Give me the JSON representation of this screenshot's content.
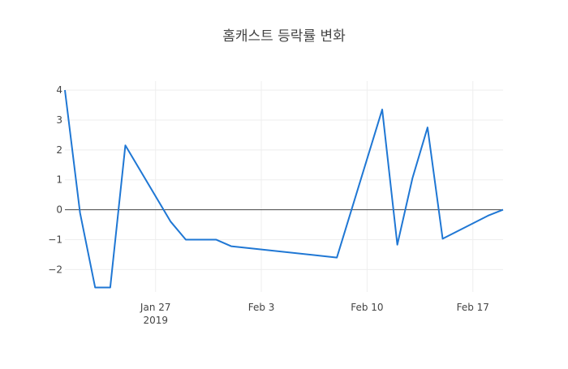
{
  "chart_data": {
    "type": "line",
    "title": "홈캐스트 등락률 변화",
    "xlabel": "",
    "ylabel": "",
    "x_ticks": [
      {
        "date": "2019-01-27",
        "label": "Jan 27",
        "sublabel": "2019"
      },
      {
        "date": "2019-02-03",
        "label": "Feb 3",
        "sublabel": ""
      },
      {
        "date": "2019-02-10",
        "label": "Feb 10",
        "sublabel": ""
      },
      {
        "date": "2019-02-17",
        "label": "Feb 17",
        "sublabel": ""
      }
    ],
    "y_ticks": [
      {
        "value": 4,
        "label": "4"
      },
      {
        "value": 3,
        "label": "3"
      },
      {
        "value": 2,
        "label": "2"
      },
      {
        "value": 1,
        "label": "1"
      },
      {
        "value": 0,
        "label": "0"
      },
      {
        "value": -1,
        "label": "−1"
      },
      {
        "value": -2,
        "label": "−2"
      }
    ],
    "xlim": [
      "2019-01-21",
      "2019-02-19"
    ],
    "ylim": [
      -2.75,
      4.3
    ],
    "grid": true,
    "series": [
      {
        "color": "#1f77d4",
        "points": [
          {
            "x": "2019-01-21",
            "y": 4.0
          },
          {
            "x": "2019-01-22",
            "y": -0.1
          },
          {
            "x": "2019-01-23",
            "y": -2.6
          },
          {
            "x": "2019-01-24",
            "y": -2.6
          },
          {
            "x": "2019-01-25",
            "y": 2.15
          },
          {
            "x": "2019-01-28",
            "y": -0.4
          },
          {
            "x": "2019-01-29",
            "y": -1.0
          },
          {
            "x": "2019-01-31",
            "y": -1.0
          },
          {
            "x": "2019-02-01",
            "y": -1.22
          },
          {
            "x": "2019-02-08",
            "y": -1.6
          },
          {
            "x": "2019-02-11",
            "y": 3.35
          },
          {
            "x": "2019-02-12",
            "y": -1.17
          },
          {
            "x": "2019-02-13",
            "y": 1.05
          },
          {
            "x": "2019-02-14",
            "y": 2.75
          },
          {
            "x": "2019-02-15",
            "y": -0.97
          },
          {
            "x": "2019-02-18",
            "y": -0.2
          },
          {
            "x": "2019-02-19",
            "y": 0.0
          }
        ]
      }
    ]
  }
}
